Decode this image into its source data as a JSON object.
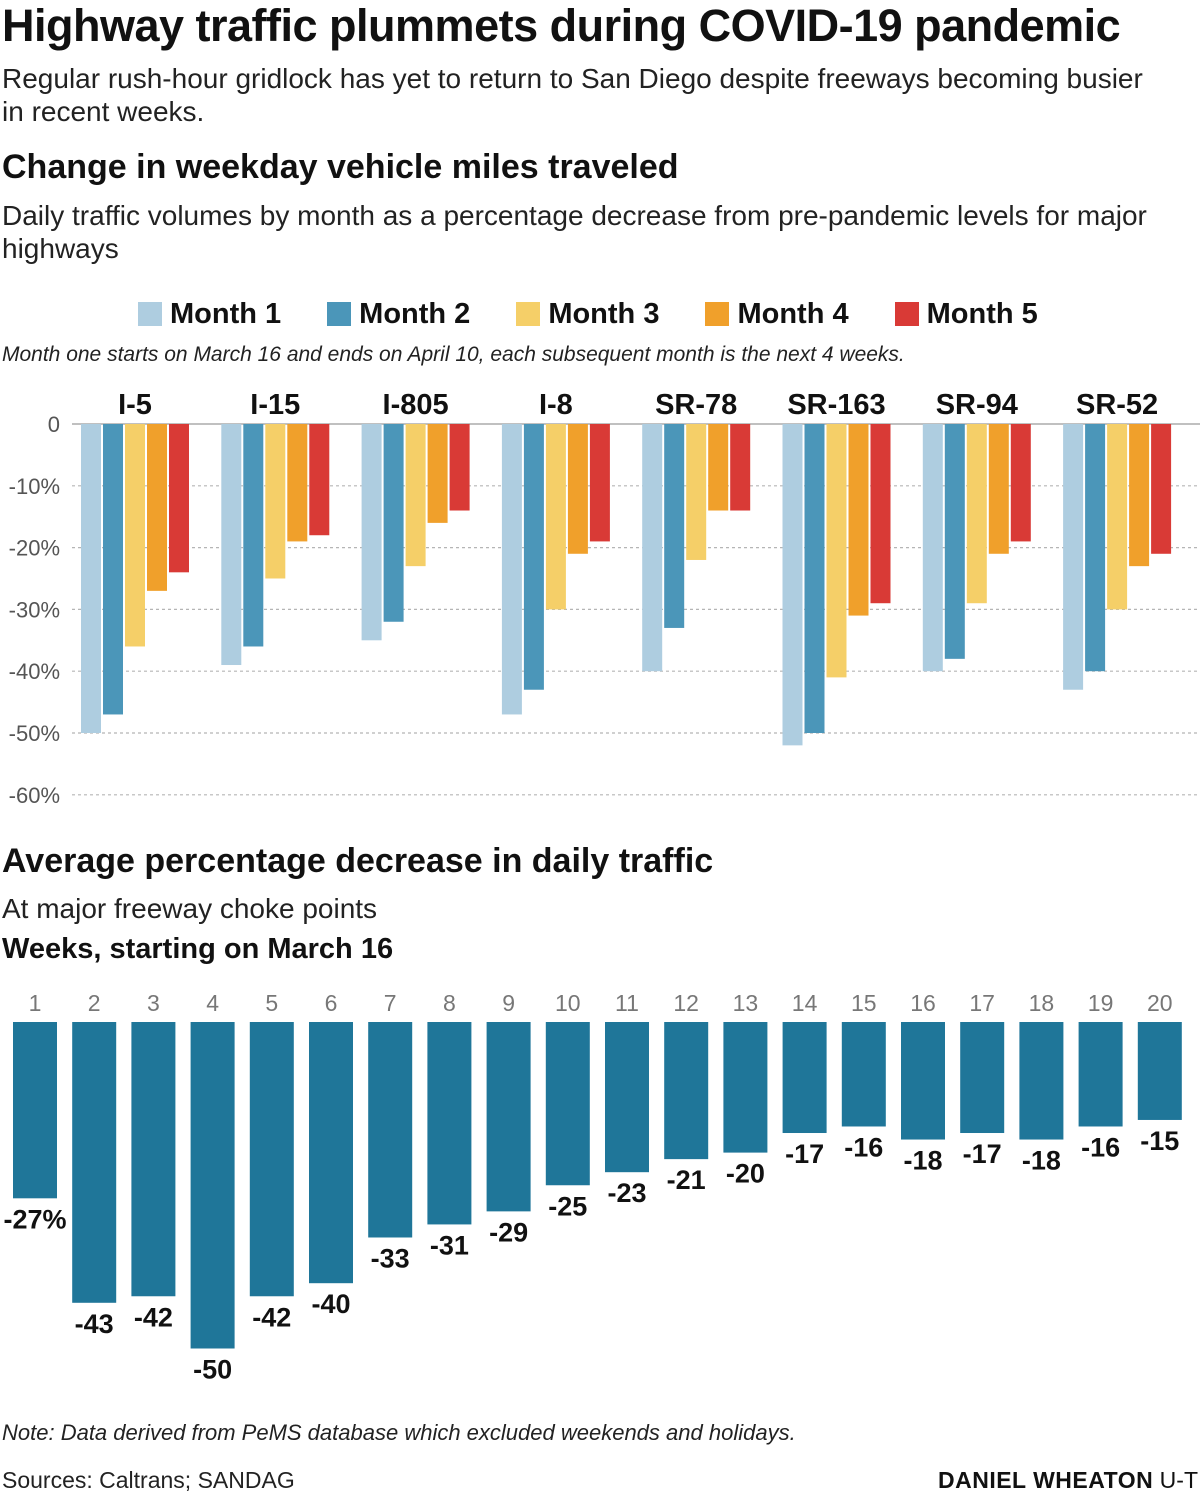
{
  "title": "Highway traffic plummets during COVID-19 pandemic",
  "subtitle": "Regular rush-hour gridlock has yet to return to San Diego despite freeways becoming busier in recent weeks.",
  "section1": {
    "title": "Change in weekday vehicle miles traveled",
    "subtitle": "Daily traffic volumes by month as a percentage decrease from pre-pandemic levels for major highways",
    "legend_note": "Month one starts on March 16 and ends on April 10, each subsequent month is the next 4 weeks."
  },
  "section2": {
    "title": "Average percentage decrease in daily traffic",
    "subtitle": "At major freeway choke points",
    "weeks_label": "Weeks, starting on March 16"
  },
  "footer": {
    "note": "Note: Data derived from PeMS database which excluded weekends and holidays.",
    "sources": "Sources: Caltrans; SANDAG",
    "credit_name": "DANIEL WHEATON",
    "credit_org": "U-T"
  },
  "chart_data": [
    {
      "type": "bar",
      "title": "Change in weekday vehicle miles traveled",
      "categories": [
        "I-5",
        "I-15",
        "I-805",
        "I-8",
        "SR-78",
        "SR-163",
        "SR-94",
        "SR-52"
      ],
      "series": [
        {
          "name": "Month 1",
          "color": "#aecde0",
          "values": [
            -50,
            -39,
            -35,
            -47,
            -40,
            -52,
            -40,
            -43
          ]
        },
        {
          "name": "Month 2",
          "color": "#4b96b9",
          "values": [
            -47,
            -36,
            -32,
            -43,
            -33,
            -50,
            -38,
            -40
          ]
        },
        {
          "name": "Month 3",
          "color": "#f5cf68",
          "values": [
            -36,
            -25,
            -23,
            -30,
            -22,
            -41,
            -29,
            -30
          ]
        },
        {
          "name": "Month 4",
          "color": "#f0a02b",
          "values": [
            -27,
            -19,
            -16,
            -21,
            -14,
            -31,
            -21,
            -23
          ]
        },
        {
          "name": "Month 5",
          "color": "#d93a36",
          "values": [
            -24,
            -18,
            -14,
            -19,
            -14,
            -29,
            -19,
            -21
          ]
        }
      ],
      "ylim": [
        -60,
        0
      ],
      "yticks": [
        0,
        -10,
        -20,
        -30,
        -40,
        -50,
        -60
      ],
      "ytick_labels": [
        "0",
        "-10%",
        "-20%",
        "-30%",
        "-40%",
        "-50%",
        "-60%"
      ],
      "grid": true,
      "legend_position": "top"
    },
    {
      "type": "bar",
      "title": "Average percentage decrease in daily traffic",
      "xlabel": "Weeks, starting on March 16",
      "color": "#1f7699",
      "categories": [
        "1",
        "2",
        "3",
        "4",
        "5",
        "6",
        "7",
        "8",
        "9",
        "10",
        "11",
        "12",
        "13",
        "14",
        "15",
        "16",
        "17",
        "18",
        "19",
        "20"
      ],
      "values": [
        -27,
        -43,
        -42,
        -50,
        -42,
        -40,
        -33,
        -31,
        -29,
        -25,
        -23,
        -21,
        -20,
        -17,
        -16,
        -18,
        -17,
        -18,
        -16,
        -15
      ],
      "value_labels": [
        "-27%",
        "-43",
        "-42",
        "-50",
        "-42",
        "-40",
        "-33",
        "-31",
        "-29",
        "-25",
        "-23",
        "-21",
        "-20",
        "-17",
        "-16",
        "-18",
        "-17",
        "-18",
        "-16",
        "-15"
      ]
    }
  ]
}
